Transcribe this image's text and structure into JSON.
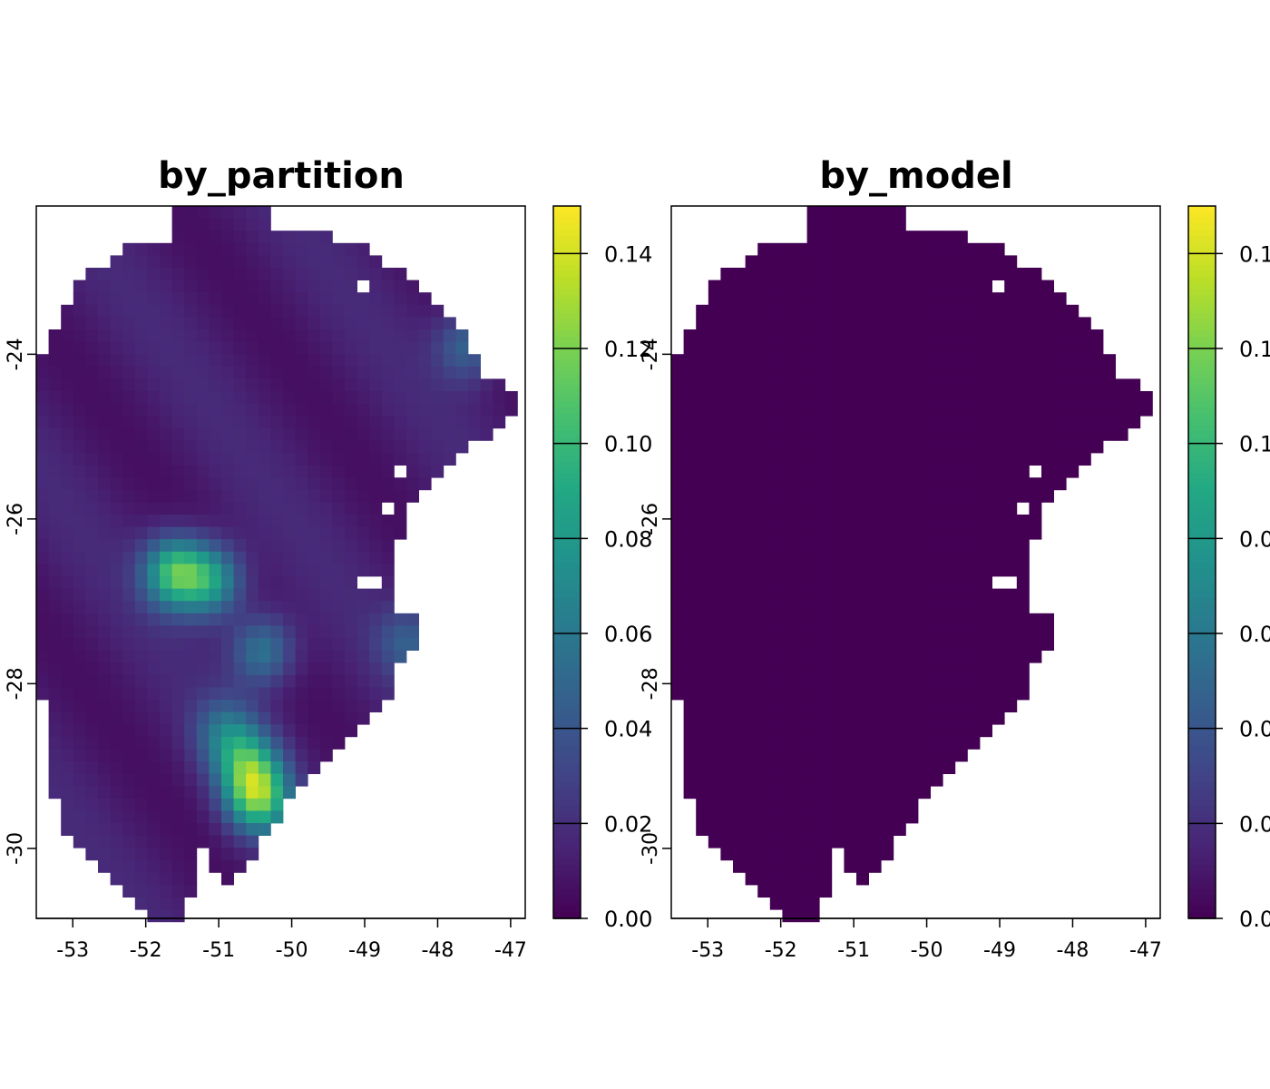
{
  "chart_data": [
    {
      "type": "heatmap",
      "title": "by_partition",
      "xlabel": "",
      "ylabel": "",
      "xlim": [
        -53.5,
        -46.8
      ],
      "ylim": [
        -30.85,
        -22.2
      ],
      "x_ticks": [
        "-53",
        "-52",
        "-51",
        "-50",
        "-49",
        "-48",
        "-47"
      ],
      "y_ticks": [
        "-24",
        "-26",
        "-28",
        "-30"
      ],
      "colorbar": {
        "range": [
          0,
          0.15
        ],
        "ticks": [
          "0.00",
          "0.02",
          "0.04",
          "0.06",
          "0.08",
          "0.10",
          "0.12",
          "0.14"
        ],
        "colormap": "viridis"
      },
      "grid": false,
      "hotspots": [
        {
          "lon": -51.6,
          "lat": -26.65,
          "value": 0.12
        },
        {
          "lon": -51.1,
          "lat": -26.75,
          "value": 0.09
        },
        {
          "lon": -50.45,
          "lat": -29.4,
          "value": 0.12
        },
        {
          "lon": -50.6,
          "lat": -29.0,
          "value": 0.09
        },
        {
          "lon": -50.4,
          "lat": -27.6,
          "value": 0.065
        },
        {
          "lon": -50.9,
          "lat": -28.6,
          "value": 0.055
        },
        {
          "lon": -47.6,
          "lat": -23.9,
          "value": 0.05
        },
        {
          "lon": -48.4,
          "lat": -27.5,
          "value": 0.04
        }
      ]
    },
    {
      "type": "heatmap",
      "title": "by_model",
      "xlabel": "",
      "ylabel": "",
      "xlim": [
        -53.5,
        -46.8
      ],
      "ylim": [
        -30.85,
        -22.2
      ],
      "x_ticks": [
        "-53",
        "-52",
        "-51",
        "-50",
        "-49",
        "-48",
        "-47"
      ],
      "y_ticks": [
        "-24",
        "-26",
        "-28",
        "-30"
      ],
      "colorbar": {
        "range": [
          0,
          0.15
        ],
        "ticks": [
          "0.0",
          "0.0",
          "0.0",
          "0.0",
          "0.0",
          "0.1",
          "0.1",
          "0.1"
        ],
        "colormap": "viridis"
      },
      "grid": false,
      "uniform_value": 0.0
    }
  ],
  "colors": {
    "background": "#ffffff",
    "na": "#ffffff",
    "viridis_low": "#440154",
    "viridis_high": "#fde725"
  }
}
